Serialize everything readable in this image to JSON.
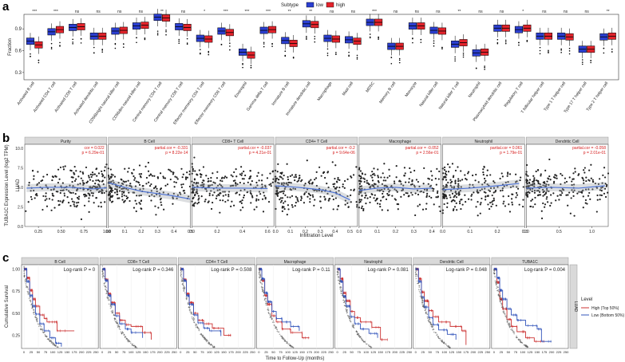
{
  "panels": {
    "a_letter": "a",
    "b_letter": "b",
    "c_letter": "c"
  },
  "colors": {
    "low": "#2b3fd1",
    "high": "#e3232b",
    "dot": "#222222",
    "fit": "#4f74d6",
    "km_high": "#cc3333",
    "km_low": "#3355bb"
  },
  "chart_data": [
    {
      "type": "box",
      "id": "immune_boxplot",
      "legend": {
        "title": "Subtype",
        "entries": [
          "low",
          "high"
        ],
        "placement": "top"
      },
      "ylabel": "Fraction",
      "yticks": [
        "0.3",
        "0.6",
        "0.9"
      ],
      "ylim": [
        0.2,
        1.1
      ],
      "categories": [
        "Activated B cell",
        "Activated CD4 T cell",
        "Activated CD8 T cell",
        "Activated dendritic cell",
        "CD56bright natural killer cell",
        "CD56dim natural killer cell",
        "Central memory CD4 T cell",
        "Central memory CD8 T cell",
        "Effector memeory CD4 T cell",
        "Effector memeory CD8 T cell",
        "Eosinophil",
        "Gamma delta T cell",
        "Immature B cell",
        "Immature dendritic cell",
        "Macrophage",
        "Mast cell",
        "MDSC",
        "Memory B cell",
        "Monocyte",
        "Natural killer cell",
        "Natural killer T cell",
        "Neutrophil",
        "Plasmacytoid dendritic cell",
        "Regulatory T cell",
        "T follicular helper cell",
        "Type 1 T helper cell",
        "Type 17 T helper cell",
        "Type 2 T helper cell"
      ],
      "significance": [
        "***",
        "***",
        "ns",
        "ns",
        "ns",
        "ns",
        "**",
        "ns",
        "*",
        "***",
        "***",
        "***",
        "**",
        "**",
        "ns",
        "ns",
        "***",
        "ns",
        "ns",
        "ns",
        "**",
        "ns",
        "ns",
        "*",
        "ns",
        "ns",
        "ns",
        "**"
      ],
      "series": [
        {
          "name": "low",
          "medians": [
            0.73,
            0.86,
            0.92,
            0.8,
            0.87,
            0.94,
            1.06,
            0.93,
            0.77,
            0.87,
            0.58,
            0.88,
            0.74,
            0.97,
            0.77,
            0.75,
            0.99,
            0.66,
            0.94,
            0.88,
            0.69,
            0.57,
            0.91,
            0.89,
            0.8,
            0.8,
            0.62,
            0.79
          ]
        },
        {
          "name": "high",
          "medians": [
            0.68,
            0.89,
            0.93,
            0.8,
            0.88,
            0.95,
            1.05,
            0.92,
            0.76,
            0.85,
            0.54,
            0.89,
            0.7,
            0.96,
            0.76,
            0.73,
            0.99,
            0.66,
            0.94,
            0.87,
            0.71,
            0.58,
            0.91,
            0.91,
            0.8,
            0.79,
            0.62,
            0.8
          ]
        }
      ]
    },
    {
      "type": "scatter",
      "id": "infiltration_scatter",
      "ylabel": "TUBA1C Expression Level (log2 TPM)",
      "xlabel": "Infiltration Level",
      "row_label": "LUAD",
      "yticks": [
        "0.0",
        "2.5",
        "5.0",
        "7.5",
        "10.0"
      ],
      "ylim": [
        0,
        10.5
      ],
      "facets": [
        {
          "name": "Purity",
          "cor": "cor = 0.022",
          "p": "p = 6.29e-01",
          "xlim": [
            0.1,
            1.0
          ],
          "xticks": [
            "0.25",
            "0.50",
            "0.75",
            "1.00"
          ],
          "xtickvals": [
            0.25,
            0.5,
            0.75,
            1.0
          ],
          "fit": [
            [
              0.12,
              4.9
            ],
            [
              0.35,
              5.0
            ],
            [
              0.6,
              5.0
            ],
            [
              0.85,
              4.8
            ],
            [
              1.0,
              4.95
            ]
          ]
        },
        {
          "name": "B Cell",
          "cor": "partial.cor = -0.331",
          "p": "p = 8.22e-14",
          "xlim": [
            0,
            0.5
          ],
          "xticks": [
            "0.0",
            "0.1",
            "0.2",
            "0.3",
            "0.4",
            "0.5"
          ],
          "xtickvals": [
            0,
            0.1,
            0.2,
            0.3,
            0.4,
            0.5
          ],
          "fit": [
            [
              0,
              5.6
            ],
            [
              0.1,
              5.0
            ],
            [
              0.2,
              4.5
            ],
            [
              0.3,
              4.2
            ],
            [
              0.4,
              3.9
            ],
            [
              0.5,
              3.5
            ]
          ]
        },
        {
          "name": "CD8+ T Cell",
          "cor": "partial.cor = -0.037",
          "p": "p = 4.21e-01",
          "xlim": [
            0,
            0.65
          ],
          "xticks": [
            "0.0",
            "0.2",
            "0.4",
            "0.6"
          ],
          "xtickvals": [
            0,
            0.2,
            0.4,
            0.6
          ],
          "fit": [
            [
              0,
              5.0
            ],
            [
              0.2,
              4.9
            ],
            [
              0.4,
              4.9
            ],
            [
              0.6,
              4.85
            ]
          ]
        },
        {
          "name": "CD4+ T Cell",
          "cor": "partial.cor = -0.2",
          "p": "p = 9.64e-06",
          "xlim": [
            0,
            0.55
          ],
          "xticks": [
            "0.0",
            "0.1",
            "0.2",
            "0.3",
            "0.4",
            "0.5"
          ],
          "xtickvals": [
            0,
            0.1,
            0.2,
            0.3,
            0.4,
            0.5
          ],
          "fit": [
            [
              0,
              5.2
            ],
            [
              0.15,
              5.0
            ],
            [
              0.3,
              4.7
            ],
            [
              0.4,
              4.3
            ],
            [
              0.5,
              3.4
            ]
          ]
        },
        {
          "name": "Macrophage",
          "cor": "partial.cor = -0.052",
          "p": "p = 2.56e-01",
          "xlim": [
            0,
            0.45
          ],
          "xticks": [
            "0.0",
            "0.1",
            "0.2",
            "0.3",
            "0.4"
          ],
          "xtickvals": [
            0,
            0.1,
            0.2,
            0.3,
            0.4
          ],
          "fit": [
            [
              0,
              4.6
            ],
            [
              0.1,
              4.9
            ],
            [
              0.2,
              5.0
            ],
            [
              0.3,
              4.8
            ],
            [
              0.4,
              4.9
            ]
          ]
        },
        {
          "name": "Neutrophil",
          "cor": "partial.cor = 0.061",
          "p": "p = 1.79e-01",
          "xlim": [
            0,
            0.3
          ],
          "xticks": [
            "0.0",
            "0.1",
            "0.2",
            "0.3"
          ],
          "xtickvals": [
            0,
            0.1,
            0.2,
            0.3
          ],
          "fit": [
            [
              0,
              4.7
            ],
            [
              0.1,
              4.9
            ],
            [
              0.2,
              5.2
            ],
            [
              0.28,
              5.5
            ]
          ]
        },
        {
          "name": "Dendritic Cell",
          "cor": "partial.cor = -0.058",
          "p": "p = 2.01e-01",
          "xlim": [
            0,
            1.25
          ],
          "xticks": [
            "0.0",
            "0.5",
            "1.0"
          ],
          "xtickvals": [
            0,
            0.5,
            1.0
          ],
          "fit": [
            [
              0,
              4.9
            ],
            [
              0.4,
              5.0
            ],
            [
              0.8,
              4.9
            ],
            [
              1.2,
              5.2
            ]
          ]
        }
      ]
    },
    {
      "type": "line",
      "id": "kaplan_meier",
      "ylabel": "Cumulative Survival",
      "xlabel": "Time to Follow-Up (months)",
      "row_label": "LUAD",
      "yticks": [
        "0.25",
        "0.50",
        "0.75",
        "1.00"
      ],
      "ylim": [
        0.1,
        1.05
      ],
      "xticks": [
        "0",
        "25",
        "50",
        "75",
        "100",
        "125",
        "150",
        "175",
        "200",
        "225",
        "250"
      ],
      "xlim": [
        0,
        250
      ],
      "legend": {
        "title": "Level",
        "entries": [
          "High (Top 50%)",
          "Low (Bottom 50%)"
        ],
        "placement": "right"
      },
      "facets": [
        {
          "name": "B Cell",
          "logrank": "Log-rank P = 0",
          "high": [
            [
              0,
              1
            ],
            [
              10,
              0.9
            ],
            [
              20,
              0.76
            ],
            [
              30,
              0.66
            ],
            [
              40,
              0.58
            ],
            [
              55,
              0.48
            ],
            [
              70,
              0.44
            ],
            [
              80,
              0.4
            ],
            [
              110,
              0.4
            ],
            [
              115,
              0.3
            ],
            [
              175,
              0.3
            ]
          ],
          "low": [
            [
              0,
              1
            ],
            [
              10,
              0.86
            ],
            [
              20,
              0.7
            ],
            [
              30,
              0.58
            ],
            [
              40,
              0.49
            ],
            [
              55,
              0.38
            ],
            [
              70,
              0.3
            ],
            [
              90,
              0.22
            ],
            [
              110,
              0.16
            ],
            [
              130,
              0.12
            ]
          ]
        },
        {
          "name": "CD8+ T Cell",
          "logrank": "Log-rank P = 0.346",
          "high": [
            [
              0,
              1
            ],
            [
              10,
              0.88
            ],
            [
              20,
              0.72
            ],
            [
              30,
              0.62
            ],
            [
              45,
              0.5
            ],
            [
              60,
              0.42
            ],
            [
              80,
              0.37
            ],
            [
              100,
              0.35
            ],
            [
              140,
              0.28
            ],
            [
              170,
              0.2
            ]
          ],
          "low": [
            [
              0,
              1
            ],
            [
              10,
              0.87
            ],
            [
              20,
              0.7
            ],
            [
              30,
              0.6
            ],
            [
              45,
              0.47
            ],
            [
              60,
              0.38
            ],
            [
              80,
              0.32
            ],
            [
              100,
              0.28
            ],
            [
              140,
              0.22
            ]
          ]
        },
        {
          "name": "CD4+ T Cell",
          "logrank": "Log-rank P = 0.508",
          "high": [
            [
              0,
              1
            ],
            [
              10,
              0.88
            ],
            [
              20,
              0.72
            ],
            [
              30,
              0.62
            ],
            [
              45,
              0.5
            ],
            [
              60,
              0.42
            ],
            [
              80,
              0.38
            ],
            [
              110,
              0.33
            ],
            [
              150,
              0.25
            ],
            [
              175,
              0.25
            ]
          ],
          "low": [
            [
              0,
              1
            ],
            [
              10,
              0.87
            ],
            [
              20,
              0.7
            ],
            [
              30,
              0.6
            ],
            [
              45,
              0.48
            ],
            [
              60,
              0.39
            ],
            [
              80,
              0.33
            ],
            [
              100,
              0.3
            ],
            [
              140,
              0.24
            ]
          ]
        },
        {
          "name": "Macrophage",
          "logrank": "Log-rank P = 0.11",
          "high": [
            [
              0,
              1
            ],
            [
              10,
              0.87
            ],
            [
              20,
              0.7
            ],
            [
              30,
              0.6
            ],
            [
              45,
              0.47
            ],
            [
              60,
              0.4
            ],
            [
              80,
              0.32
            ],
            [
              110,
              0.28
            ],
            [
              150,
              0.22
            ],
            [
              175,
              0.22
            ]
          ],
          "low": [
            [
              0,
              1
            ],
            [
              10,
              0.89
            ],
            [
              20,
              0.73
            ],
            [
              30,
              0.63
            ],
            [
              45,
              0.52
            ],
            [
              60,
              0.44
            ],
            [
              80,
              0.4
            ],
            [
              110,
              0.35
            ],
            [
              140,
              0.3
            ]
          ]
        },
        {
          "name": "Neutrophil",
          "logrank": "Log-rank P = 0.081",
          "high": [
            [
              0,
              1
            ],
            [
              10,
              0.89
            ],
            [
              20,
              0.73
            ],
            [
              30,
              0.64
            ],
            [
              45,
              0.52
            ],
            [
              60,
              0.45
            ],
            [
              80,
              0.4
            ],
            [
              120,
              0.34
            ],
            [
              150,
              0.2
            ],
            [
              175,
              0.2
            ]
          ],
          "low": [
            [
              0,
              1
            ],
            [
              10,
              0.86
            ],
            [
              20,
              0.69
            ],
            [
              30,
              0.58
            ],
            [
              45,
              0.46
            ],
            [
              60,
              0.38
            ],
            [
              80,
              0.32
            ],
            [
              110,
              0.27
            ],
            [
              140,
              0.22
            ]
          ]
        },
        {
          "name": "Dendritic Cell",
          "logrank": "Log-rank P = 0.048",
          "high": [
            [
              0,
              1
            ],
            [
              10,
              0.89
            ],
            [
              20,
              0.74
            ],
            [
              30,
              0.64
            ],
            [
              45,
              0.53
            ],
            [
              60,
              0.46
            ],
            [
              80,
              0.4
            ],
            [
              120,
              0.35
            ],
            [
              160,
              0.3
            ],
            [
              175,
              0.14
            ]
          ],
          "low": [
            [
              0,
              1
            ],
            [
              10,
              0.86
            ],
            [
              20,
              0.68
            ],
            [
              30,
              0.57
            ],
            [
              45,
              0.45
            ],
            [
              60,
              0.37
            ],
            [
              80,
              0.31
            ],
            [
              110,
              0.26
            ],
            [
              140,
              0.2
            ]
          ]
        },
        {
          "name": "TUBA1C",
          "logrank": "Log-rank P = 0.004",
          "high": [
            [
              0,
              1
            ],
            [
              10,
              0.85
            ],
            [
              20,
              0.66
            ],
            [
              30,
              0.55
            ],
            [
              45,
              0.43
            ],
            [
              60,
              0.35
            ],
            [
              80,
              0.29
            ],
            [
              110,
              0.22
            ],
            [
              140,
              0.18
            ],
            [
              175,
              0.18
            ]
          ],
          "low": [
            [
              0,
              1
            ],
            [
              10,
              0.9
            ],
            [
              20,
              0.76
            ],
            [
              30,
              0.66
            ],
            [
              45,
              0.55
            ],
            [
              60,
              0.48
            ],
            [
              80,
              0.42
            ],
            [
              110,
              0.36
            ],
            [
              150,
              0.32
            ],
            [
              165,
              0.18
            ],
            [
              200,
              0.18
            ]
          ]
        }
      ]
    }
  ]
}
